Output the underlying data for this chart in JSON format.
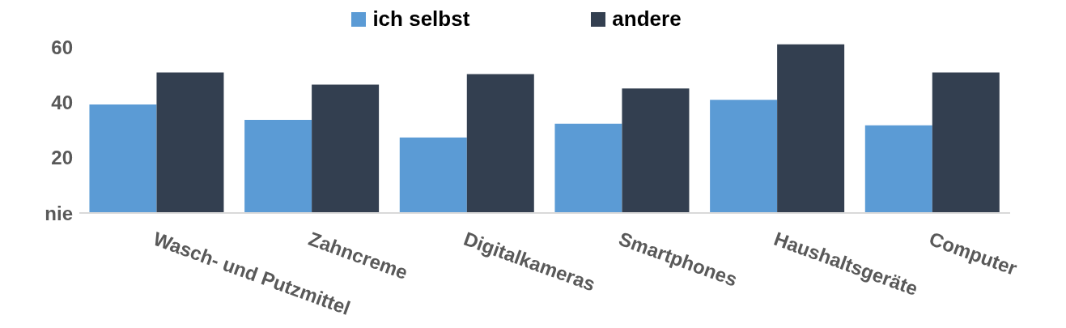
{
  "chart_data": {
    "type": "bar",
    "categories": [
      "Wasch- und Putzmittel",
      "Zahncreme",
      "Digitalkameras",
      "Smartphones",
      "Haushaltsgeräte",
      "Computer"
    ],
    "series": [
      {
        "name": "ich selbst",
        "color": "#5b9bd5",
        "values": [
          39.4,
          33.8,
          27.4,
          32.4,
          41.1,
          31.8
        ]
      },
      {
        "name": "andere",
        "color": "#333f50",
        "values": [
          51,
          46.6,
          50.4,
          45.2,
          61.2,
          51
        ]
      }
    ],
    "ylim": [
      0,
      62
    ],
    "yticks": [
      {
        "value": 0,
        "label": "nie"
      },
      20,
      40,
      60
    ],
    "legend": "top"
  }
}
